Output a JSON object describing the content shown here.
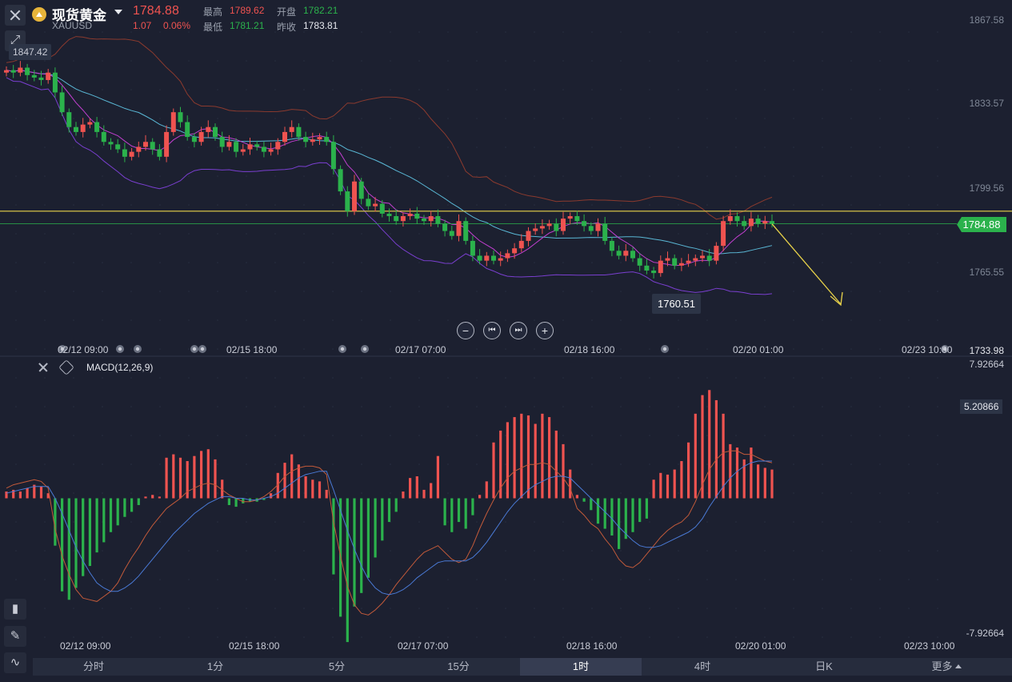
{
  "header": {
    "symbol_name": "现货黄金",
    "symbol_code": "XAUUSD",
    "last_price": "1784.88",
    "change": "1.07",
    "change_pct": "0.06%",
    "quote": {
      "high_label": "最高",
      "high": "1789.62",
      "open_label": "开盘",
      "open": "1782.21",
      "low_label": "最低",
      "low": "1781.21",
      "prev_close_label": "昨收",
      "prev_close": "1783.81"
    },
    "colors": {
      "up": "#ef5350",
      "down": "#26a69a",
      "green_text": "#2bb24c"
    }
  },
  "chart_data": [
    {
      "type": "candlestick",
      "title": "现货黄金 XAUUSD",
      "interval": "1时",
      "y_ticks": [
        "1867.58",
        "1833.57",
        "1799.56",
        "1784.88",
        "1765.55",
        "1733.98"
      ],
      "ylim": [
        1733.98,
        1867.58
      ],
      "x_ticks": [
        "02/12 09:00",
        "02/15 18:00",
        "02/17 07:00",
        "02/18 16:00",
        "02/20 01:00",
        "02/23 10:00"
      ],
      "current_price": 1784.88,
      "annotations": {
        "period_high_label": "1847.42",
        "period_low_label": "1760.51",
        "horizontal_line": 1790.0,
        "trend_arrow": "down"
      },
      "series": [
        {
          "name": "Close",
          "values": [
            1847,
            1846,
            1848,
            1845,
            1844,
            1843,
            1846,
            1838,
            1830,
            1824,
            1822,
            1825,
            1826,
            1822,
            1818,
            1817,
            1815,
            1812,
            1814,
            1816,
            1818,
            1815,
            1812,
            1822,
            1830,
            1826,
            1820,
            1818,
            1822,
            1824,
            1820,
            1816,
            1818,
            1814,
            1815,
            1817,
            1816,
            1814,
            1815,
            1818,
            1822,
            1824,
            1820,
            1818,
            1819,
            1820,
            1818,
            1807,
            1798,
            1790,
            1802,
            1795,
            1792,
            1793,
            1789,
            1788,
            1786,
            1788,
            1789,
            1787,
            1786,
            1788,
            1785,
            1782,
            1780,
            1786,
            1778,
            1772,
            1770,
            1772,
            1770,
            1771,
            1773,
            1775,
            1778,
            1782,
            1783,
            1784,
            1785,
            1782,
            1787,
            1788,
            1786,
            1784,
            1782,
            1785,
            1778,
            1774,
            1772,
            1774,
            1771,
            1768,
            1766,
            1765,
            1770,
            1771,
            1768,
            1769,
            1770,
            1771,
            1772,
            1770,
            1776,
            1786,
            1788,
            1786,
            1784,
            1787,
            1785,
            1786,
            1784.88
          ]
        }
      ]
    },
    {
      "type": "bar",
      "title": "MACD(12,26,9)",
      "y_ticks": [
        "7.92664",
        "5.20866",
        "-7.92664"
      ],
      "ylim": [
        -7.92664,
        7.92664
      ],
      "series": [
        {
          "name": "Histogram",
          "values": [
            0.4,
            0.5,
            0.4,
            0.6,
            0.8,
            0.7,
            0.3,
            -2.8,
            -5.5,
            -6.0,
            -5.3,
            -4.6,
            -4.0,
            -3.2,
            -2.6,
            -2.0,
            -1.6,
            -1.1,
            -0.8,
            -0.4,
            0.1,
            0.2,
            0.1,
            2.4,
            2.6,
            2.4,
            2.2,
            2.5,
            2.8,
            2.9,
            2.3,
            1.1,
            -0.4,
            -0.5,
            -0.3,
            -0.2,
            -0.2,
            -0.1,
            0.3,
            1.5,
            2.1,
            2.6,
            2.0,
            1.3,
            1.1,
            1.0,
            0.5,
            -4.5,
            -7.0,
            -8.5,
            -6.4,
            -5.6,
            -4.7,
            -3.5,
            -2.5,
            -1.4,
            -0.8,
            0.4,
            1.2,
            1.3,
            0.5,
            0.9,
            2.5,
            -1.6,
            -2.0,
            -1.4,
            -1.8,
            -1.0,
            0.2,
            1.0,
            3.3,
            4.0,
            4.5,
            4.8,
            5.0,
            4.9,
            4.4,
            5.0,
            4.8,
            4.0,
            3.2,
            1.7,
            0.2,
            -0.2,
            -0.7,
            -1.5,
            -1.8,
            -2.2,
            -3.0,
            -2.4,
            -2.0,
            -1.4,
            -1.2,
            1.1,
            1.5,
            1.4,
            1.7,
            2.2,
            3.3,
            5.0,
            6.1,
            6.4,
            5.8,
            5.0,
            3.2,
            3.0,
            2.3,
            3.0,
            2.0,
            1.8,
            1.7
          ]
        },
        {
          "name": "DIF",
          "values": [
            0.6,
            0.8,
            0.9,
            1.0,
            1.1,
            1.0,
            0.6,
            -1.8,
            -3.4,
            -4.5,
            -5.4,
            -5.9,
            -6.0,
            -6.1,
            -5.8,
            -5.5,
            -5.0,
            -4.2,
            -3.5,
            -2.9,
            -2.2,
            -1.6,
            -1.1,
            -0.6,
            -0.3,
            0.0,
            0.4,
            0.6,
            0.8,
            0.9,
            0.8,
            0.5,
            0.2,
            0.0,
            -0.2,
            -0.2,
            -0.1,
            0.1,
            0.4,
            0.8,
            1.3,
            1.6,
            1.8,
            1.9,
            1.9,
            1.8,
            1.4,
            -1.4,
            -3.4,
            -5.2,
            -6.3,
            -6.8,
            -6.9,
            -6.6,
            -6.2,
            -5.7,
            -5.1,
            -4.6,
            -4.1,
            -3.6,
            -3.2,
            -3.0,
            -2.8,
            -3.2,
            -3.6,
            -3.8,
            -3.6,
            -2.8,
            -1.8,
            -0.9,
            -0.1,
            0.6,
            1.2,
            1.6,
            1.8,
            2.0,
            2.0,
            2.1,
            2.0,
            1.6,
            1.2,
            0.6,
            -0.6,
            -1.0,
            -1.5,
            -1.8,
            -2.4,
            -2.9,
            -3.6,
            -4.0,
            -4.1,
            -3.8,
            -3.3,
            -2.8,
            -2.3,
            -1.9,
            -1.6,
            -1.4,
            -1.0,
            -0.2,
            0.8,
            1.7,
            2.3,
            2.7,
            2.8,
            2.8,
            2.6,
            2.6,
            2.4,
            2.2,
            2.1
          ]
        },
        {
          "name": "DEA",
          "values": [
            0.3,
            0.4,
            0.5,
            0.6,
            0.7,
            0.7,
            0.7,
            0.0,
            -0.9,
            -1.9,
            -2.9,
            -3.7,
            -4.4,
            -5.0,
            -5.3,
            -5.5,
            -5.5,
            -5.3,
            -5.0,
            -4.6,
            -4.1,
            -3.6,
            -3.1,
            -2.6,
            -2.1,
            -1.7,
            -1.3,
            -0.9,
            -0.6,
            -0.3,
            -0.1,
            0.1,
            0.1,
            0.0,
            0.0,
            -0.1,
            -0.1,
            0.0,
            0.1,
            0.3,
            0.6,
            0.9,
            1.2,
            1.4,
            1.5,
            1.6,
            1.6,
            0.5,
            -0.7,
            -1.9,
            -3.0,
            -4.0,
            -4.8,
            -5.3,
            -5.6,
            -5.7,
            -5.6,
            -5.4,
            -5.1,
            -4.7,
            -4.4,
            -4.1,
            -3.8,
            -3.7,
            -3.7,
            -3.7,
            -3.7,
            -3.5,
            -3.1,
            -2.6,
            -2.0,
            -1.4,
            -0.8,
            -0.3,
            0.1,
            0.5,
            0.8,
            1.0,
            1.2,
            1.3,
            1.3,
            1.2,
            0.8,
            0.4,
            0.0,
            -0.4,
            -0.8,
            -1.2,
            -1.7,
            -2.1,
            -2.5,
            -2.8,
            -2.9,
            -2.9,
            -2.8,
            -2.6,
            -2.4,
            -2.2,
            -2.0,
            -1.7,
            -1.2,
            -0.5,
            0.1,
            0.7,
            1.2,
            1.6,
            1.9,
            2.1,
            2.2,
            2.2,
            2.2
          ]
        }
      ]
    }
  ],
  "toolbar": {
    "zoom_out": "−",
    "prev": "⏮",
    "next": "⏭",
    "zoom_in": "+"
  },
  "timeframes": [
    {
      "label": "分时",
      "active": false
    },
    {
      "label": "1分",
      "active": false
    },
    {
      "label": "5分",
      "active": false
    },
    {
      "label": "15分",
      "active": false
    },
    {
      "label": "1时",
      "active": true
    },
    {
      "label": "4时",
      "active": false
    },
    {
      "label": "日K",
      "active": false
    },
    {
      "label": "更多",
      "active": false
    }
  ]
}
